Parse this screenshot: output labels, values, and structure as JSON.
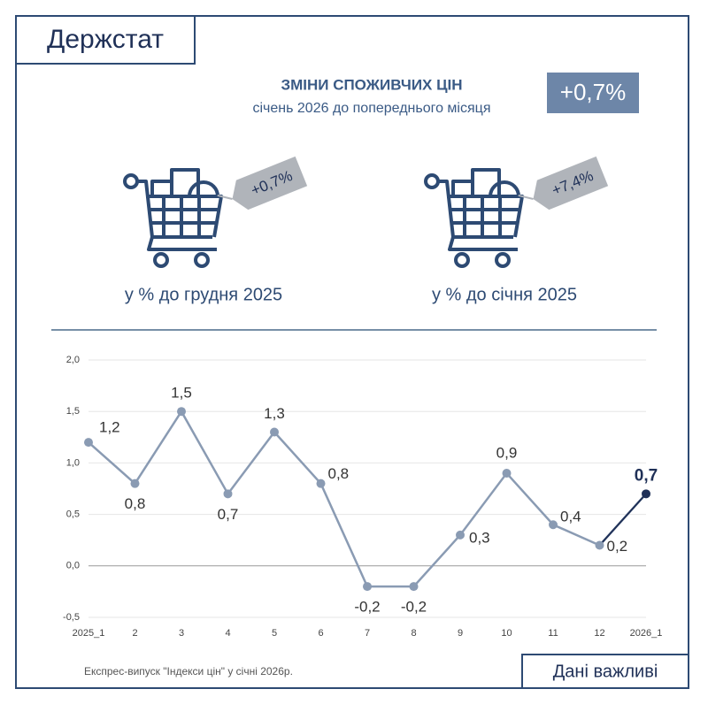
{
  "header": {
    "logo": "Держстат",
    "title": "ЗМІНИ СПОЖИВЧИХ ЦІН",
    "subtitle": "січень 2026 до попереднього місяця",
    "badge": "+0,7%"
  },
  "summary": [
    {
      "tag": "+0,7%",
      "caption": "у % до грудня 2025"
    },
    {
      "tag": "+7,4%",
      "caption": "у % до січня 2025"
    }
  ],
  "chart_data": {
    "type": "line",
    "categories": [
      "2025_1",
      "2",
      "3",
      "4",
      "5",
      "6",
      "7",
      "8",
      "9",
      "10",
      "11",
      "12",
      "2026_1"
    ],
    "values": [
      1.2,
      0.8,
      1.5,
      0.7,
      1.3,
      0.8,
      -0.2,
      -0.2,
      0.3,
      0.9,
      0.4,
      0.2,
      0.7
    ],
    "value_labels": [
      "1,2",
      "0,8",
      "1,5",
      "0,7",
      "1,3",
      "0,8",
      "-0,2",
      "-0,2",
      "0,3",
      "0,9",
      "0,4",
      "0,2",
      "0,7"
    ],
    "color": "#8a9bb3",
    "highlight_color": "#1f3057",
    "ylim": [
      -0.5,
      2.0
    ],
    "yticks": [
      {
        "value": -0.5,
        "label": "-0,5"
      },
      {
        "value": 0,
        "label": "0,0"
      },
      {
        "value": 0.5,
        "label": "0,5"
      },
      {
        "value": 1.0,
        "label": "1,0"
      },
      {
        "value": 1.5,
        "label": "1,5"
      },
      {
        "value": 2.0,
        "label": "2,0"
      }
    ],
    "grid": true
  },
  "footer": {
    "source": "Експрес-випуск \"Індекси цін\" у січні 2026р.",
    "button": "Дані важливі"
  }
}
